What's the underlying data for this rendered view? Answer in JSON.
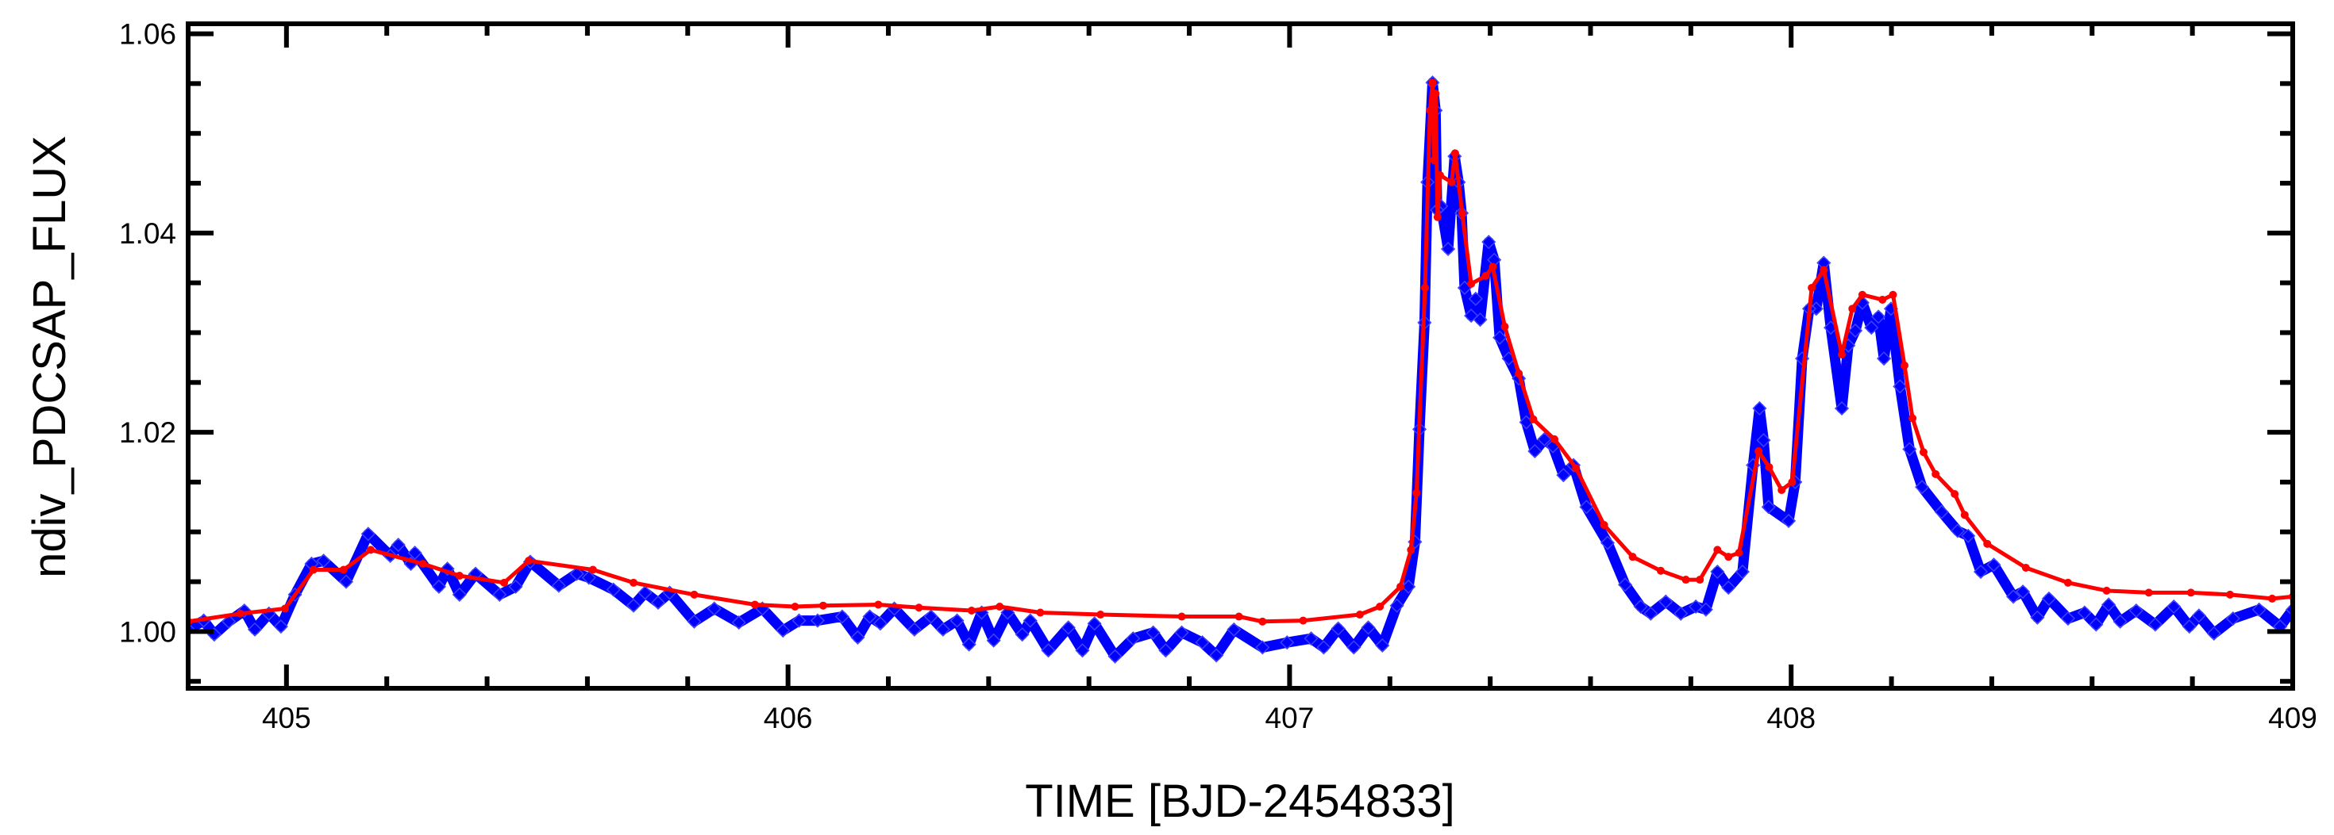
{
  "chart_data": {
    "type": "line",
    "title": "",
    "xlabel": "TIME [BJD-2454833]",
    "ylabel": "ndiv_PDCSAP_FLUX",
    "xlim": [
      404.804,
      409.0
    ],
    "ylim": [
      0.9943,
      1.061
    ],
    "xticks": [
      405,
      406,
      407,
      408,
      409
    ],
    "xtick_labels": [
      "405",
      "406",
      "407",
      "408",
      "409"
    ],
    "xminor_step": 0.2,
    "yticks": [
      1.0,
      1.02,
      1.04,
      1.06
    ],
    "ytick_labels": [
      "1.00",
      "1.02",
      "1.04",
      "1.06"
    ],
    "yminor_step": 0.005,
    "grid": false,
    "legend": "none",
    "series": [
      {
        "color": "#0000ff",
        "marker": "diamond",
        "x": [
          404.804,
          404.835,
          404.856,
          404.885,
          404.916,
          404.937,
          404.965,
          404.989,
          405.017,
          405.05,
          405.074,
          405.119,
          405.163,
          405.207,
          405.223,
          405.248,
          405.256,
          405.304,
          405.321,
          405.345,
          405.377,
          405.425,
          405.457,
          405.486,
          405.543,
          405.579,
          405.603,
          405.652,
          405.692,
          405.715,
          405.741,
          405.764,
          405.813,
          405.853,
          405.902,
          405.949,
          405.99,
          406.022,
          406.059,
          406.108,
          406.139,
          406.163,
          406.184,
          406.212,
          406.252,
          406.285,
          406.309,
          406.337,
          406.361,
          406.386,
          406.41,
          406.438,
          406.467,
          406.483,
          406.519,
          406.559,
          406.587,
          406.611,
          406.652,
          406.688,
          406.728,
          406.753,
          406.785,
          406.826,
          406.854,
          406.889,
          406.946,
          406.995,
          407.043,
          407.068,
          407.097,
          407.128,
          407.157,
          407.185,
          407.214,
          407.237,
          407.25,
          407.259,
          407.269,
          407.275,
          407.285,
          407.291,
          407.294,
          407.302,
          407.316,
          407.329,
          407.337,
          407.343,
          407.349,
          407.362,
          407.371,
          407.38,
          407.397,
          407.408,
          407.419,
          407.437,
          407.457,
          407.472,
          407.489,
          407.508,
          407.525,
          407.546,
          407.566,
          407.592,
          407.634,
          407.669,
          407.7,
          407.72,
          407.75,
          407.78,
          407.81,
          407.83,
          407.853,
          407.875,
          407.903,
          407.924,
          407.937,
          407.945,
          407.955,
          407.995,
          408.008,
          408.022,
          408.036,
          408.05,
          408.065,
          408.079,
          408.101,
          408.114,
          408.128,
          408.142,
          408.16,
          408.174,
          408.185,
          408.199,
          408.217,
          408.236,
          408.261,
          408.3,
          408.332,
          408.353,
          408.378,
          408.404,
          408.443,
          408.462,
          408.491,
          408.514,
          408.552,
          408.585,
          408.608,
          408.633,
          408.656,
          408.688,
          408.726,
          408.763,
          408.794,
          408.813,
          408.843,
          408.881,
          408.933,
          408.975,
          409.0
        ],
        "y": [
          1.0002,
          1.0011,
          0.9997,
          1.001,
          1.0021,
          1.0002,
          1.0018,
          1.0005,
          1.0037,
          1.0068,
          1.0071,
          1.005,
          1.0098,
          1.0076,
          1.0087,
          1.0068,
          1.0079,
          1.0045,
          1.0063,
          1.0037,
          1.0058,
          1.0037,
          1.0045,
          1.007,
          1.0046,
          1.0058,
          1.0054,
          1.0042,
          1.0026,
          1.0039,
          1.0029,
          1.0039,
          1.001,
          1.0023,
          1.0009,
          1.0023,
          1.0001,
          1.0011,
          1.0011,
          1.0015,
          0.9994,
          1.0015,
          1.0008,
          1.0023,
          1.0002,
          1.0015,
          1.0002,
          1.0011,
          0.9987,
          1.0019,
          0.9991,
          1.0019,
          0.9997,
          1.0011,
          0.9981,
          1.0004,
          0.9981,
          1.0008,
          0.9975,
          0.9993,
          0.9999,
          0.9981,
          0.9999,
          0.9989,
          0.9976,
          1.0002,
          0.9984,
          0.9989,
          0.9993,
          0.9984,
          1.0003,
          0.9984,
          1.0004,
          0.9986,
          1.0026,
          1.0045,
          1.009,
          1.0203,
          1.031,
          1.0451,
          1.0551,
          1.0523,
          1.0423,
          1.0427,
          1.0384,
          1.0477,
          1.0451,
          1.042,
          1.0345,
          1.0317,
          1.0334,
          1.0313,
          1.0391,
          1.0373,
          1.0295,
          1.0274,
          1.0254,
          1.021,
          1.0181,
          1.0193,
          1.0186,
          1.0157,
          1.0167,
          1.0125,
          1.0089,
          1.0047,
          1.0025,
          1.0018,
          1.003,
          1.0018,
          1.0025,
          1.0022,
          1.006,
          1.0044,
          1.006,
          1.0167,
          1.0224,
          1.0192,
          1.0125,
          1.0111,
          1.015,
          1.0274,
          1.0324,
          1.0324,
          1.037,
          1.0305,
          1.0224,
          1.0287,
          1.0302,
          1.033,
          1.0305,
          1.0316,
          1.0274,
          1.0324,
          1.0246,
          1.0183,
          1.0145,
          1.012,
          1.0101,
          1.0096,
          1.006,
          1.0067,
          1.0035,
          1.004,
          1.0014,
          1.0033,
          1.0013,
          1.0019,
          1.0007,
          1.0027,
          1.001,
          1.0021,
          1.0007,
          1.0025,
          1.0005,
          1.0016,
          0.9998,
          1.0013,
          1.0022,
          1.0005,
          1.0022
        ]
      },
      {
        "color": "#ff0000",
        "marker": "dot",
        "x": [
          404.804,
          404.908,
          404.997,
          405.054,
          405.114,
          405.168,
          405.272,
          405.345,
          405.434,
          405.483,
          405.611,
          405.692,
          405.813,
          405.934,
          406.014,
          406.07,
          406.18,
          406.261,
          406.366,
          406.422,
          406.503,
          406.623,
          406.785,
          406.899,
          406.946,
          407.027,
          407.14,
          407.18,
          407.221,
          407.242,
          407.253,
          407.27,
          407.28,
          407.285,
          407.288,
          407.291,
          407.295,
          407.3,
          407.323,
          407.33,
          407.344,
          407.362,
          407.391,
          407.405,
          407.429,
          407.457,
          407.486,
          407.528,
          407.571,
          407.627,
          407.684,
          407.74,
          407.79,
          407.818,
          407.853,
          407.875,
          407.896,
          407.935,
          407.956,
          407.981,
          408.002,
          408.041,
          408.065,
          408.101,
          408.122,
          408.142,
          408.182,
          408.203,
          408.226,
          408.242,
          408.264,
          408.288,
          408.326,
          408.346,
          408.391,
          408.468,
          408.552,
          408.629,
          408.713,
          408.797,
          408.875,
          408.959,
          409.0
        ],
        "y": [
          1.001,
          1.0018,
          1.0023,
          1.0062,
          1.0062,
          1.0082,
          1.0068,
          1.0056,
          1.0049,
          1.0071,
          1.0062,
          1.0049,
          1.0037,
          1.0027,
          1.0025,
          1.0026,
          1.0027,
          1.0024,
          1.0021,
          1.0025,
          1.0019,
          1.0017,
          1.0015,
          1.0015,
          1.001,
          1.0011,
          1.0017,
          1.0025,
          1.0045,
          1.0082,
          1.0139,
          1.0345,
          1.0523,
          1.0551,
          1.0473,
          1.054,
          1.0416,
          1.0458,
          1.0451,
          1.048,
          1.042,
          1.0349,
          1.0357,
          1.0366,
          1.0306,
          1.0259,
          1.0213,
          1.0193,
          1.0164,
          1.0107,
          1.0075,
          1.0061,
          1.0052,
          1.0052,
          1.0082,
          1.0075,
          1.0079,
          1.0181,
          1.0165,
          1.0142,
          1.015,
          1.0345,
          1.0363,
          1.0278,
          1.0324,
          1.0338,
          1.0333,
          1.0338,
          1.0267,
          1.0214,
          1.018,
          1.0158,
          1.0138,
          1.0117,
          1.0088,
          1.0064,
          1.0049,
          1.0041,
          1.0039,
          1.0039,
          1.0037,
          1.0033,
          1.0035
        ]
      }
    ]
  }
}
